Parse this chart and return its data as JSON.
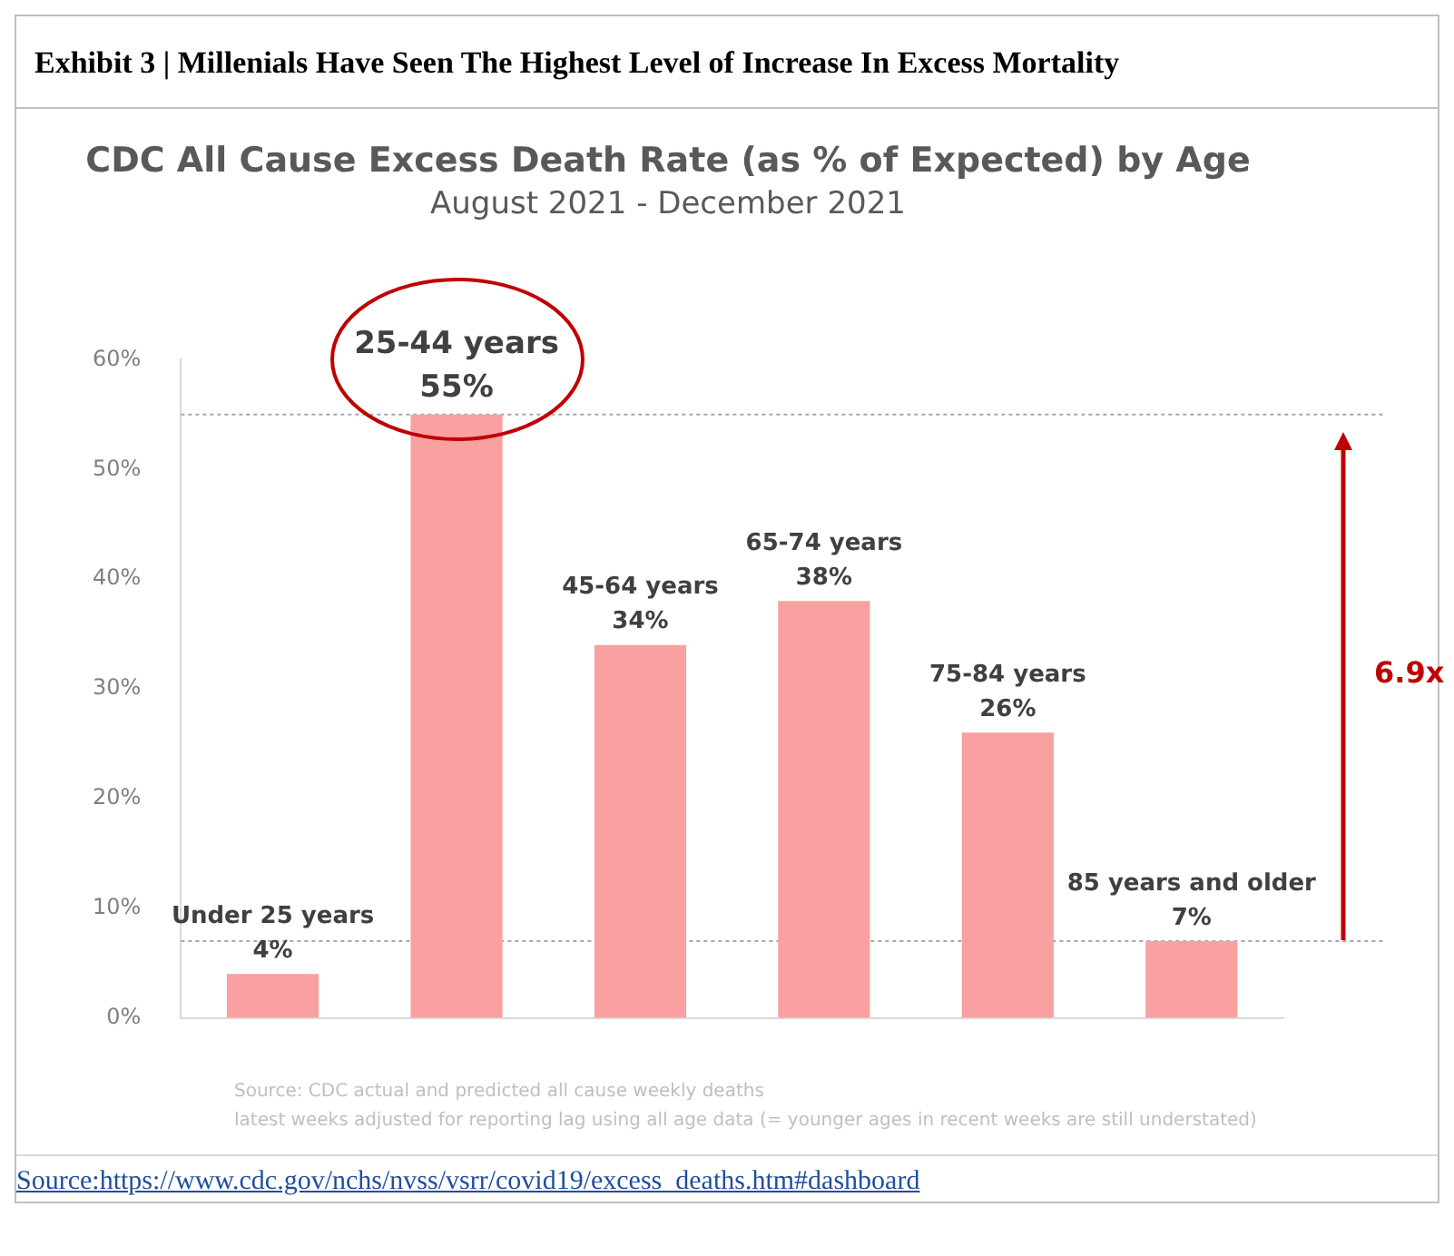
{
  "chart_data": {
    "type": "bar",
    "title": "CDC All Cause Excess Death Rate (as % of Expected) by Age",
    "subtitle": "August 2021 - December 2021",
    "categories": [
      "Under 25 years",
      "25-44 years",
      "45-64 years",
      "65-74 years",
      "75-84 years",
      "85 years and older"
    ],
    "values": [
      4,
      55,
      34,
      38,
      26,
      7
    ],
    "value_labels": [
      "4%",
      "55%",
      "34%",
      "38%",
      "26%",
      "7%"
    ],
    "color": "#f9a0a0",
    "ylim": [
      0,
      60
    ],
    "yticks": [
      {
        "value": 0,
        "label": "0%"
      },
      {
        "value": 10,
        "label": "10%"
      },
      {
        "value": 20,
        "label": "20%"
      },
      {
        "value": 30,
        "label": "30%"
      },
      {
        "value": 40,
        "label": "40%"
      },
      {
        "value": 50,
        "label": "50%"
      },
      {
        "value": 60,
        "label": "60%"
      }
    ],
    "grid": false,
    "tick_labels": "y",
    "ref_lines": [
      {
        "axis": "y",
        "value": 55,
        "label": null,
        "color": "#a6a6a6",
        "line_style": "dotted"
      },
      {
        "axis": "y",
        "value": 7,
        "label": null,
        "color": "#a6a6a6",
        "line_style": "dotted"
      }
    ],
    "annotations": [
      "Exhibit 3 | Millenials Have Seen The Highest Level of Increase In Excess Mortality",
      "Source: CDC actual and predicted all cause weekly deaths",
      "latest weeks adjusted for reporting lag using all age data (= younger ages in recent weeks are still understated)",
      "6.9x",
      "Source:https://www.cdc.gov/nchs/nvss/vsrr/covid19/excess_deaths.htm#dashboard"
    ]
  }
}
